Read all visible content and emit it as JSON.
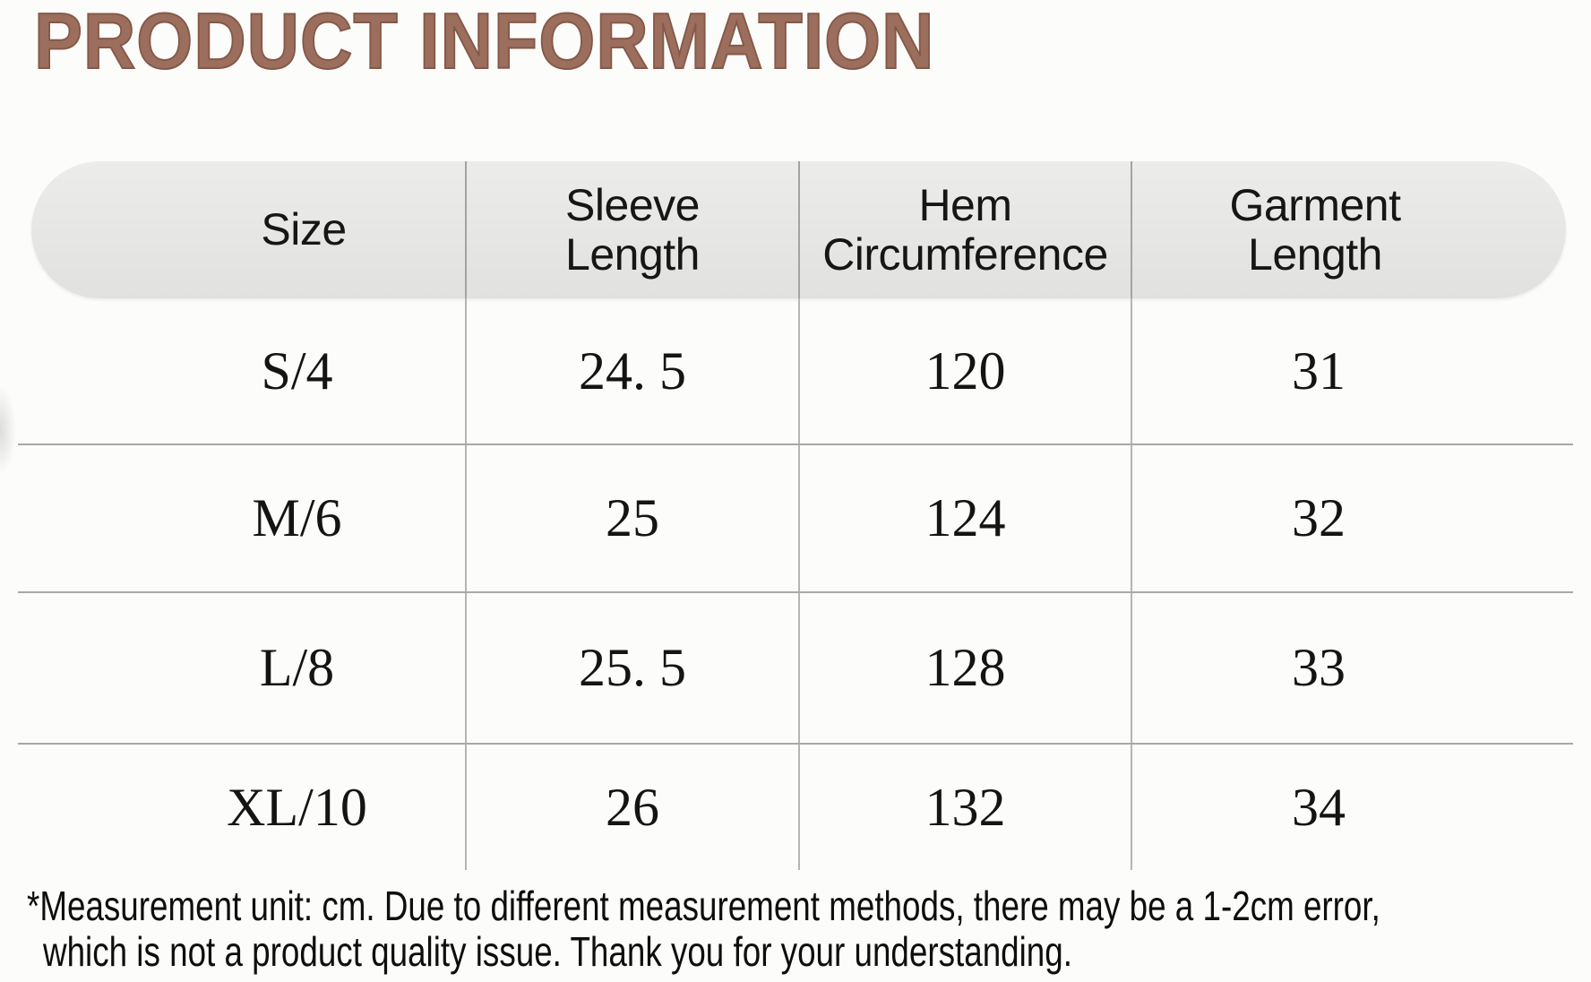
{
  "title": "PRODUCT INFORMATION",
  "table": {
    "columns": [
      {
        "line1": "Size",
        "line2": ""
      },
      {
        "line1": "Sleeve",
        "line2": "Length"
      },
      {
        "line1": "Hem",
        "line2": "Circumference"
      },
      {
        "line1": "Garment",
        "line2": "Length"
      }
    ],
    "rows": [
      [
        "S/4",
        "24. 5",
        "120",
        "31"
      ],
      [
        "M/6",
        "25",
        "124",
        "32"
      ],
      [
        "L/8",
        "25. 5",
        "128",
        "33"
      ],
      [
        "XL/10",
        "26",
        "132",
        "34"
      ]
    ]
  },
  "note": {
    "line1": "*Measurement unit: cm. Due to different measurement methods, there may be a 1-2cm error,",
    "line2": "which is not a product quality issue. Thank you for your understanding."
  },
  "colors": {
    "title_brown": "#9b6e5e",
    "header_bg": "#e8e8e6",
    "divider_gray": "#a8a8a8",
    "text_black": "#141414",
    "background": "#fcfcfa"
  }
}
